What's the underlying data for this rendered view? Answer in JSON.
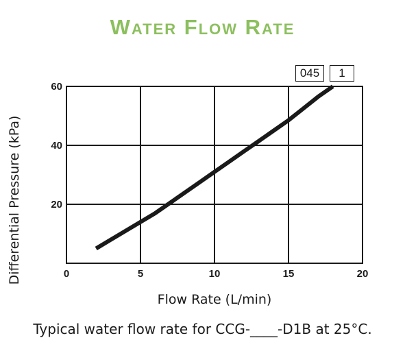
{
  "chart_data": {
    "type": "line",
    "title": "Water Flow Rate",
    "xlabel": "Flow Rate (L/min)",
    "ylabel": "Differential Pressure (kPa)",
    "xlim": [
      0,
      20
    ],
    "ylim": [
      0,
      60
    ],
    "x_ticks": [
      "0",
      "5",
      "10",
      "15",
      "20"
    ],
    "y_ticks": [
      "20",
      "40",
      "60"
    ],
    "grid": true,
    "series": [
      {
        "x": [
          2,
          3,
          4,
          5,
          6,
          7,
          8,
          9,
          10,
          11,
          12,
          13,
          14,
          15,
          16,
          17,
          18
        ],
        "y": [
          5,
          8,
          11,
          14,
          17,
          20.5,
          24,
          27.5,
          31,
          34.5,
          38,
          41.5,
          45,
          48.5,
          52.5,
          56.5,
          60
        ],
        "color": "#1a1a1a"
      }
    ]
  },
  "legend_tags": {
    "model": "045",
    "variant": "1"
  },
  "caption": "Typical water flow rate for CCG-____-D1B at 25°C."
}
